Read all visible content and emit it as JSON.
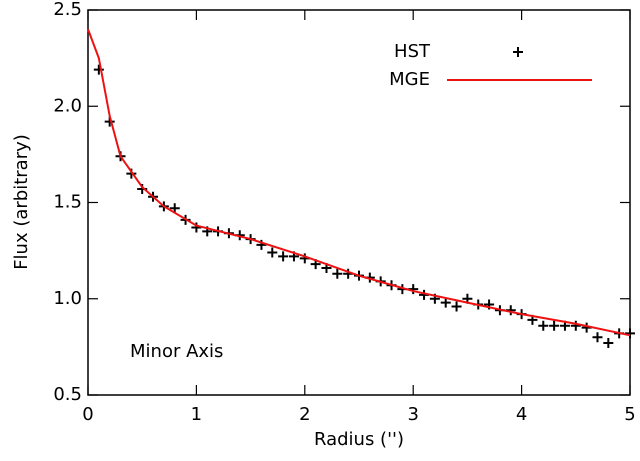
{
  "chart_data": {
    "type": "scatter",
    "xlabel": "Radius ('')",
    "ylabel": "Flux (arbitrary)",
    "annotation": "Minor Axis",
    "xlim": [
      0,
      5
    ],
    "xticks": [
      0,
      1,
      2,
      3,
      4,
      5
    ],
    "ylim": [
      0.5,
      2.5
    ],
    "yticks": [
      0.5,
      {
        "value": 1.0,
        "label": "1.0"
      },
      1.5,
      {
        "value": 2.0,
        "label": "2.0"
      },
      2.5
    ],
    "legend": "upper right",
    "series": [
      {
        "name": "HST",
        "color": "#000000",
        "mode": "markers",
        "x": [
          0.1,
          0.2,
          0.3,
          0.4,
          0.5,
          0.6,
          0.7,
          0.8,
          0.9,
          1.0,
          1.1,
          1.2,
          1.3,
          1.4,
          1.5,
          1.6,
          1.7,
          1.8,
          1.9,
          2.0,
          2.1,
          2.2,
          2.3,
          2.4,
          2.5,
          2.6,
          2.7,
          2.8,
          2.9,
          3.0,
          3.1,
          3.2,
          3.3,
          3.4,
          3.5,
          3.6,
          3.7,
          3.8,
          3.9,
          4.0,
          4.1,
          4.2,
          4.3,
          4.4,
          4.5,
          4.6,
          4.7,
          4.8,
          4.9,
          5.0
        ],
        "values": [
          2.19,
          1.92,
          1.74,
          1.65,
          1.57,
          1.53,
          1.48,
          1.47,
          1.41,
          1.37,
          1.35,
          1.35,
          1.34,
          1.33,
          1.31,
          1.28,
          1.24,
          1.22,
          1.22,
          1.21,
          1.18,
          1.16,
          1.13,
          1.13,
          1.12,
          1.11,
          1.09,
          1.07,
          1.05,
          1.05,
          1.02,
          1.0,
          0.98,
          0.96,
          1.0,
          0.97,
          0.97,
          0.94,
          0.94,
          0.92,
          0.89,
          0.86,
          0.86,
          0.86,
          0.86,
          0.85,
          0.8,
          0.77,
          0.82,
          0.82
        ]
      },
      {
        "name": "MGE",
        "color": "#ee1111",
        "mode": "lines",
        "x": [
          0,
          0.1,
          0.2,
          0.3,
          0.5,
          0.7,
          1.0,
          1.5,
          2.0,
          2.5,
          3.0,
          3.5,
          4.0,
          4.5,
          5.0
        ],
        "values": [
          2.4,
          2.25,
          1.95,
          1.74,
          1.58,
          1.48,
          1.38,
          1.31,
          1.22,
          1.12,
          1.04,
          0.98,
          0.92,
          0.87,
          0.81
        ]
      }
    ]
  }
}
